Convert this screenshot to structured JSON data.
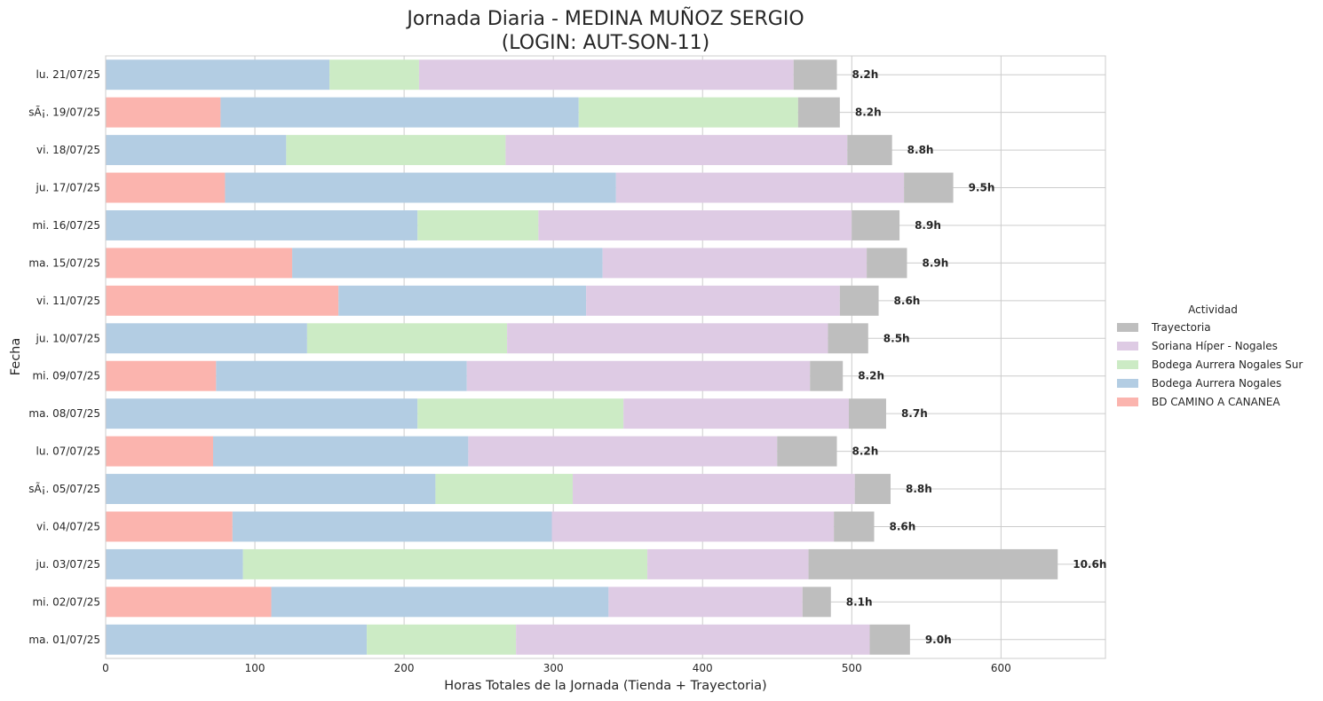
{
  "chart_data": {
    "type": "bar",
    "orientation": "horizontal",
    "stacked": true,
    "title_line1": "Jornada Diaria - MEDINA MUÑOZ SERGIO",
    "title_line2": "(LOGIN: AUT-SON-11)",
    "xlabel": "Horas Totales de la Jornada (Tienda + Trayectoria)",
    "ylabel": "Fecha",
    "xlim": [
      0,
      670
    ],
    "xticks": [
      0,
      100,
      200,
      300,
      400,
      500,
      600
    ],
    "grid": true,
    "legend": {
      "title": "Actividad",
      "placement": "right-center",
      "order": [
        "Trayectoria",
        "Soriana Híper - Nogales",
        "Bodega Aurrera Nogales Sur",
        "Bodega Aurrera Nogales",
        "BD CAMINO A CANANEA"
      ]
    },
    "series": [
      {
        "name": "BD CAMINO A CANANEA",
        "color": "#fbb4ae",
        "values": [
          0,
          77,
          0,
          80,
          0,
          125,
          156,
          0,
          74,
          0,
          72,
          0,
          85,
          0,
          111,
          0
        ]
      },
      {
        "name": "Bodega Aurrera Nogales",
        "color": "#b3cde3",
        "values": [
          150,
          240,
          121,
          262,
          209,
          208,
          166,
          135,
          168,
          209,
          171,
          221,
          214,
          92,
          226,
          175
        ]
      },
      {
        "name": "Bodega Aurrera Nogales Sur",
        "color": "#ccebc5",
        "values": [
          60,
          147,
          147,
          0,
          81,
          0,
          0,
          134,
          0,
          138,
          0,
          92,
          0,
          271,
          0,
          100
        ]
      },
      {
        "name": "Soriana Híper - Nogales",
        "color": "#decbe4",
        "values": [
          251,
          0,
          229,
          193,
          210,
          177,
          170,
          215,
          230,
          151,
          207,
          189,
          189,
          108,
          130,
          237
        ]
      },
      {
        "name": "Trayectoria",
        "color": "#bebebe",
        "values": [
          29,
          28,
          30,
          33,
          32,
          27,
          26,
          27,
          22,
          25,
          40,
          24,
          27,
          167,
          19,
          27
        ]
      }
    ],
    "categories": [
      "lu. 21/07/25",
      "sÃ¡. 19/07/25",
      "vi. 18/07/25",
      "ju. 17/07/25",
      "mi. 16/07/25",
      "ma. 15/07/25",
      "vi. 11/07/25",
      "ju. 10/07/25",
      "mi. 09/07/25",
      "ma. 08/07/25",
      "lu. 07/07/25",
      "sÃ¡. 05/07/25",
      "vi. 04/07/25",
      "ju. 03/07/25",
      "mi. 02/07/25",
      "ma. 01/07/25"
    ],
    "total_labels": [
      "8.2h",
      "8.2h",
      "8.8h",
      "9.5h",
      "8.9h",
      "8.9h",
      "8.6h",
      "8.5h",
      "8.2h",
      "8.7h",
      "8.2h",
      "8.8h",
      "8.6h",
      "10.6h",
      "8.1h",
      "9.0h"
    ]
  }
}
